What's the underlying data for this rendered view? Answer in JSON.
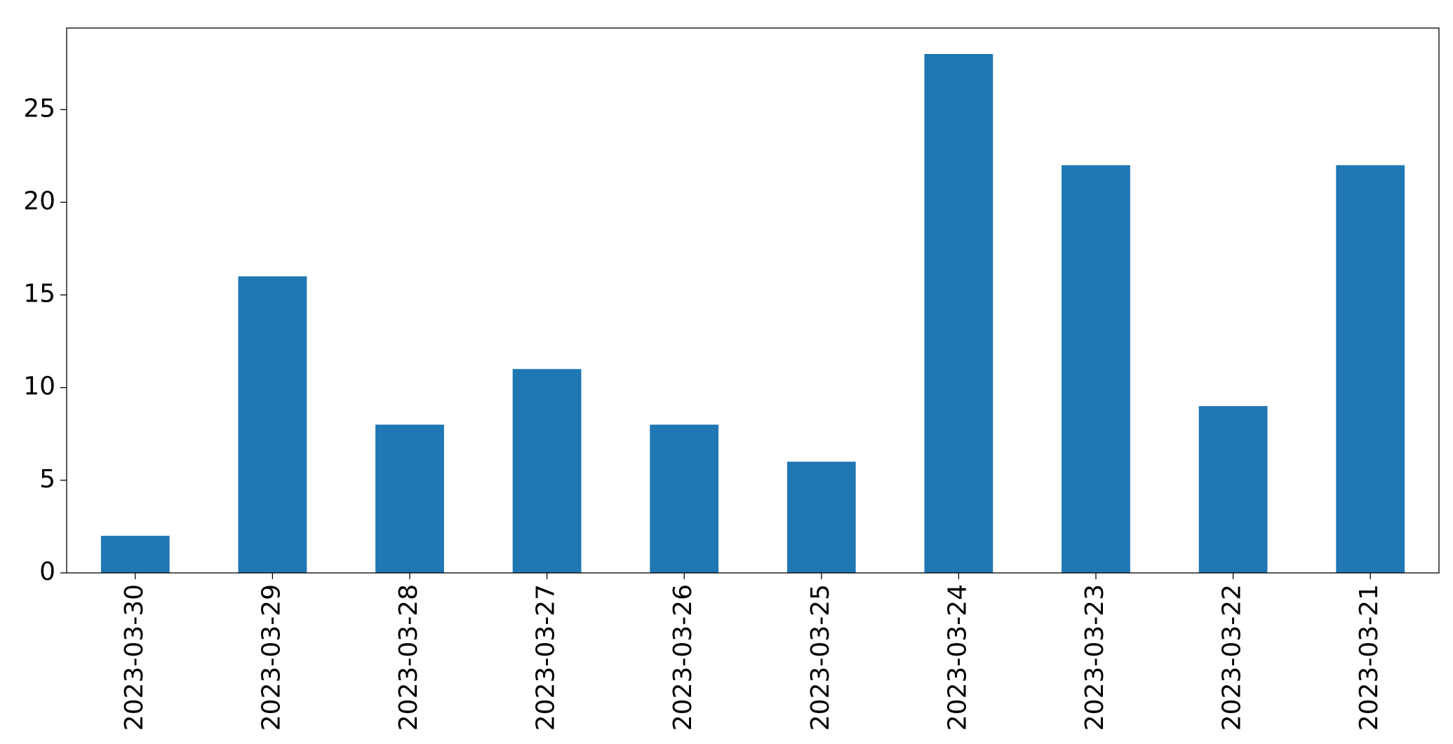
{
  "chart_data": {
    "type": "bar",
    "categories": [
      "2023-03-30",
      "2023-03-29",
      "2023-03-28",
      "2023-03-27",
      "2023-03-26",
      "2023-03-25",
      "2023-03-24",
      "2023-03-23",
      "2023-03-22",
      "2023-03-21"
    ],
    "values": [
      2,
      16,
      8,
      11,
      8,
      6,
      28,
      22,
      9,
      22
    ],
    "color": "#1f77b4",
    "ylim": [
      0,
      29.4
    ],
    "yticks": [
      0,
      5,
      10,
      15,
      20,
      25
    ],
    "grid": false
  }
}
